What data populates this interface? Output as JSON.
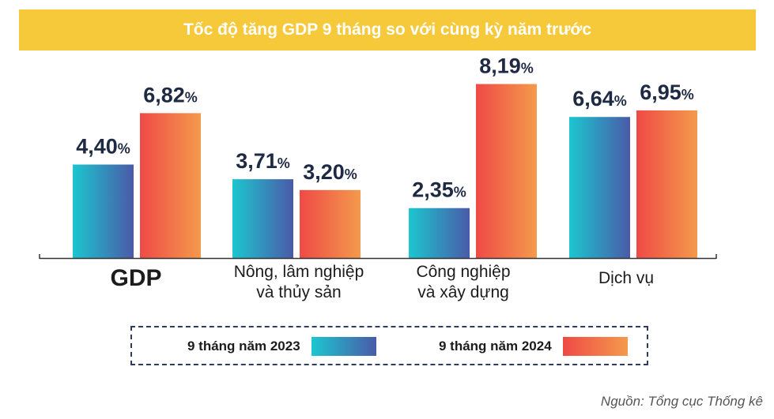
{
  "chart_data": {
    "type": "bar",
    "title": "Tốc độ tăng GDP 9 tháng so với cùng kỳ năm trước",
    "categories": [
      "GDP",
      "Nông, lâm nghiệp\nvà thủy sản",
      "Công nghiệp\nvà xây dựng",
      "Dịch vụ"
    ],
    "series": [
      {
        "name": "9 tháng năm 2023",
        "values": [
          4.4,
          3.71,
          2.35,
          6.64
        ],
        "labels": [
          "4,40",
          "3,71",
          "2,35",
          "6,64"
        ]
      },
      {
        "name": "9 tháng năm 2024",
        "values": [
          6.82,
          3.2,
          8.19,
          6.95
        ],
        "labels": [
          "6,82",
          "3,20",
          "8,19",
          "6,95"
        ]
      }
    ],
    "unit": "%",
    "ylim": [
      0,
      9.5
    ],
    "legend": "bottom",
    "grid": false
  },
  "colors": {
    "title_bg": "#f5c93a",
    "series_2023": [
      "#1cc6cf",
      "#4a5aa8"
    ],
    "series_2024": [
      "#ef4a46",
      "#f49a4c"
    ],
    "axis": "#333333"
  },
  "source": "Nguồn: Tổng cục Thống kê"
}
